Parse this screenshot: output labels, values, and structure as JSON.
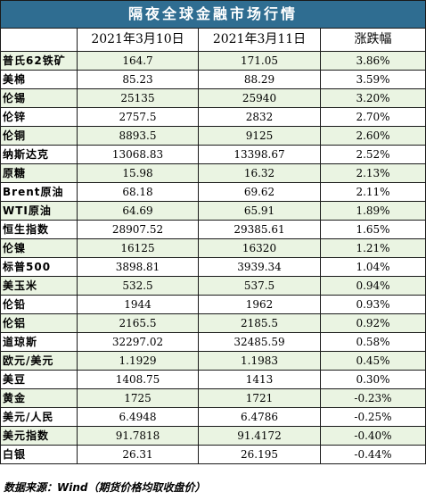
{
  "title": "隔夜全球金融市场行情",
  "headers": {
    "name": "",
    "date1": "2021年3月10日",
    "date2": "2021年3月11日",
    "change": "涨跌幅"
  },
  "rows": [
    {
      "name": "普氏62铁矿",
      "v1": "164.7",
      "v2": "171.05",
      "chg": "3.86%"
    },
    {
      "name": "美棉",
      "v1": "85.23",
      "v2": "88.29",
      "chg": "3.59%"
    },
    {
      "name": "伦锡",
      "v1": "25135",
      "v2": "25940",
      "chg": "3.20%"
    },
    {
      "name": "伦锌",
      "v1": "2757.5",
      "v2": "2832",
      "chg": "2.70%"
    },
    {
      "name": "伦铜",
      "v1": "8893.5",
      "v2": "9125",
      "chg": "2.60%"
    },
    {
      "name": "纳斯达克",
      "v1": "13068.83",
      "v2": "13398.67",
      "chg": "2.52%"
    },
    {
      "name": "原糖",
      "v1": "15.98",
      "v2": "16.32",
      "chg": "2.13%"
    },
    {
      "name": "Brent原油",
      "v1": "68.18",
      "v2": "69.62",
      "chg": "2.11%"
    },
    {
      "name": "WTI原油",
      "v1": "64.69",
      "v2": "65.91",
      "chg": "1.89%"
    },
    {
      "name": "恒生指数",
      "v1": "28907.52",
      "v2": "29385.61",
      "chg": "1.65%"
    },
    {
      "name": "伦镍",
      "v1": "16125",
      "v2": "16320",
      "chg": "1.21%"
    },
    {
      "name": "标普500",
      "v1": "3898.81",
      "v2": "3939.34",
      "chg": "1.04%"
    },
    {
      "name": "美玉米",
      "v1": "532.5",
      "v2": "537.5",
      "chg": "0.94%"
    },
    {
      "name": "伦铅",
      "v1": "1944",
      "v2": "1962",
      "chg": "0.93%"
    },
    {
      "name": "伦铝",
      "v1": "2165.5",
      "v2": "2185.5",
      "chg": "0.92%"
    },
    {
      "name": "道琼斯",
      "v1": "32297.02",
      "v2": "32485.59",
      "chg": "0.58%"
    },
    {
      "name": "欧元/美元",
      "v1": "1.1929",
      "v2": "1.1983",
      "chg": "0.45%"
    },
    {
      "name": "美豆",
      "v1": "1408.75",
      "v2": "1413",
      "chg": "0.30%"
    },
    {
      "name": "黄金",
      "v1": "1725",
      "v2": "1721",
      "chg": "-0.23%"
    },
    {
      "name": "美元/人民",
      "v1": "6.4948",
      "v2": "6.4786",
      "chg": "-0.25%"
    },
    {
      "name": "美元指数",
      "v1": "91.7818",
      "v2": "91.4172",
      "chg": "-0.40%"
    },
    {
      "name": "白银",
      "v1": "26.31",
      "v2": "26.195",
      "chg": "-0.44%"
    }
  ],
  "footer": "数据来源：Wind（期货价格均取收盘价）"
}
